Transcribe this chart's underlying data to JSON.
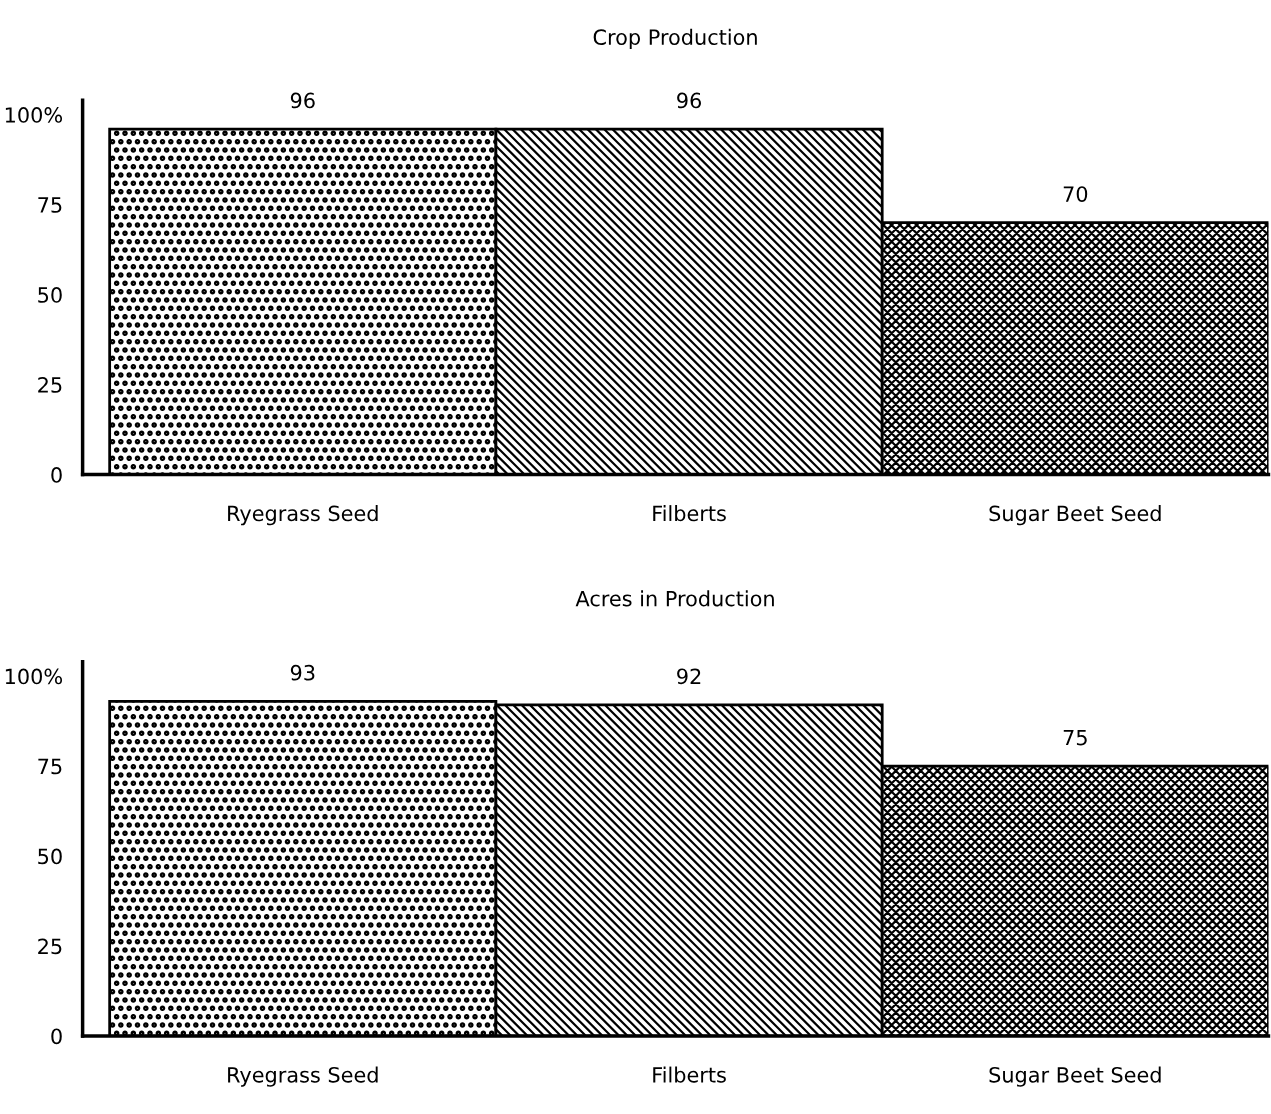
{
  "chart_data": [
    {
      "type": "bar",
      "title": "Crop Production",
      "categories": [
        "Ryegrass Seed",
        "Filberts",
        "Sugar Beet Seed"
      ],
      "values": [
        96,
        96,
        70
      ],
      "colors": [
        "#000000",
        "#000000",
        "#000000"
      ],
      "data_labels": true,
      "ylim": [
        0,
        104
      ],
      "yticks": [
        0,
        25,
        50,
        75,
        {
          "value": 100,
          "label": "100%"
        }
      ],
      "grid": false,
      "legend": false
    },
    {
      "type": "bar",
      "title": "Acres in Production",
      "categories": [
        "Ryegrass Seed",
        "Filberts",
        "Sugar Beet Seed"
      ],
      "values": [
        93,
        92,
        75
      ],
      "colors": [
        "#000000",
        "#000000",
        "#000000"
      ],
      "data_labels": true,
      "ylim": [
        0,
        104
      ],
      "yticks": [
        0,
        25,
        50,
        75,
        {
          "value": 100,
          "label": "100%"
        }
      ],
      "grid": false,
      "legend": false
    }
  ]
}
